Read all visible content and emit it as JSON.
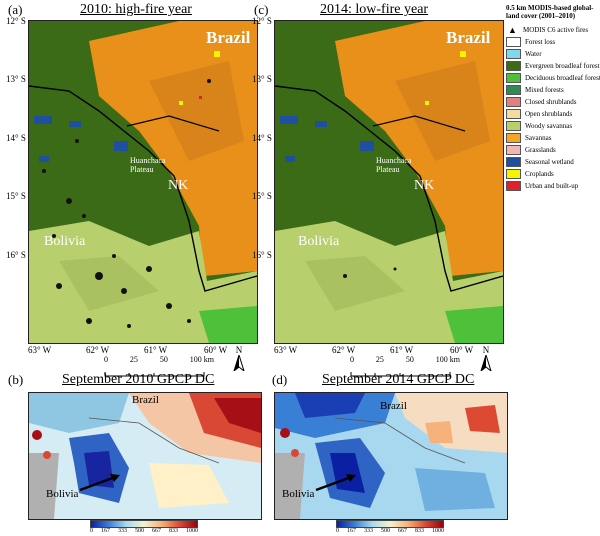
{
  "panels": {
    "a": {
      "label": "(a)",
      "title": "2010: high-fire year"
    },
    "c": {
      "label": "(c)",
      "title": "2014: low-fire year"
    },
    "b": {
      "label": "(b)",
      "title": "September 2010 GPCP DC"
    },
    "d": {
      "label": "(d)",
      "title": "September 2014 GPCP DC"
    }
  },
  "map_labels": {
    "brazil": "Brazil",
    "bolivia": "Bolivia",
    "nk": "NK",
    "huanchaca": "Huanchaca",
    "plateau": "Plateau"
  },
  "lat_ticks": [
    "12° S",
    "13° S",
    "14° S",
    "15° S",
    "16° S"
  ],
  "lon_ticks": [
    "63° W",
    "62° W",
    "61° W",
    "60° W"
  ],
  "north": "N",
  "scale": {
    "values": [
      "0",
      "25",
      "50",
      "100 km"
    ]
  },
  "legend": {
    "title": "0.5 km MODIS-based global-land cover (2001–2010)",
    "fires": "MODIS C6 active fires",
    "items": [
      {
        "label": "Forest loss",
        "color": "#ffffff"
      },
      {
        "label": "Water",
        "color": "#7fd8f0"
      },
      {
        "label": "Evergreen broadleaf forest",
        "color": "#3c6b17"
      },
      {
        "label": "Deciduous broadleaf forest",
        "color": "#4fc03a"
      },
      {
        "label": "Mixed forests",
        "color": "#2e8b57"
      },
      {
        "label": "Closed shrublands",
        "color": "#e08080"
      },
      {
        "label": "Open shrublands",
        "color": "#f4dca0"
      },
      {
        "label": "Woody savannas",
        "color": "#b8cf6e"
      },
      {
        "label": "Savannas",
        "color": "#f5a623"
      },
      {
        "label": "Grasslands",
        "color": "#f3b6b6"
      },
      {
        "label": "Seasonal wetland",
        "color": "#1e4fa0"
      },
      {
        "label": "Croplands",
        "color": "#f5f500"
      },
      {
        "label": "Urban and built-up",
        "color": "#e0202a"
      }
    ]
  },
  "colorbar": {
    "ticks": [
      "0",
      "167",
      "333",
      "500",
      "667",
      "833",
      "1000"
    ]
  }
}
